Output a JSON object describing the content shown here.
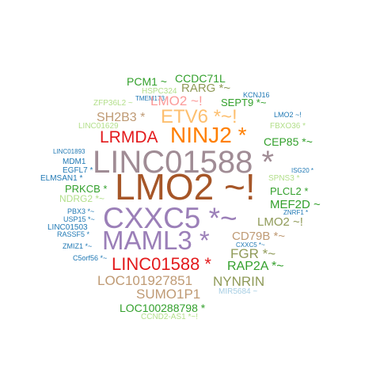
{
  "palette": {
    "dark_green": "#33a02c",
    "light_green": "#b2df8a",
    "blue": "#1f78b4",
    "light_blue": "#a6cee3",
    "red": "#e31a1c",
    "pink": "#fb9a99",
    "orange": "#ff7f00",
    "light_orange": "#fdbf6f",
    "purple": "#6a3d9a",
    "lavender": "#9b7fb8",
    "olive": "#8f9a58",
    "brown": "#a65628",
    "tan": "#bf9a74",
    "mauve": "#a08c95",
    "chartreuse": "#b5c86a"
  },
  "words": [
    {
      "text": "CCDC71L",
      "color": "#33a02c"
    },
    {
      "text": "PCM1 ~",
      "color": "#33a02c"
    },
    {
      "text": "RARG *~",
      "color": "#8f9a58"
    },
    {
      "text": "HSPC324",
      "color": "#b2df8a"
    },
    {
      "text": "TMEM173",
      "color": "#1f78b4"
    },
    {
      "text": "KCNJ16",
      "color": "#1f78b4"
    },
    {
      "text": "ZFP36L2 ~",
      "color": "#b2df8a"
    },
    {
      "text": "LMO2 ~!",
      "color": "#fb9a99"
    },
    {
      "text": "SEPT9 *~",
      "color": "#33a02c"
    },
    {
      "text": "LMO2 ~!",
      "color": "#1f78b4"
    },
    {
      "text": "SH2B3 *",
      "color": "#bf9a74"
    },
    {
      "text": "ETV6 *~!",
      "color": "#fdbf6f"
    },
    {
      "text": "LINC01629",
      "color": "#b2df8a"
    },
    {
      "text": "FBXO36 *",
      "color": "#b2df8a"
    },
    {
      "text": "LRMDA",
      "color": "#e31a1c"
    },
    {
      "text": "NINJ2 *",
      "color": "#ff7f00"
    },
    {
      "text": "CEP85 *~",
      "color": "#33a02c"
    },
    {
      "text": "LINC01893",
      "color": "#1f78b4"
    },
    {
      "text": "LINC01588 *",
      "color": "#a08c95"
    },
    {
      "text": "MDM1",
      "color": "#1f78b4"
    },
    {
      "text": "EGFL7 *",
      "color": "#1f78b4"
    },
    {
      "text": "ISG20 *",
      "color": "#1f78b4"
    },
    {
      "text": "ELMSAN1 *",
      "color": "#1f78b4"
    },
    {
      "text": "SPNS3 *",
      "color": "#b2df8a"
    },
    {
      "text": "PRKCB *",
      "color": "#33a02c"
    },
    {
      "text": "LMO2 ~!",
      "color": "#a65628"
    },
    {
      "text": "PLCL2 *",
      "color": "#33a02c"
    },
    {
      "text": "NDRG2 *~",
      "color": "#b2df8a"
    },
    {
      "text": "MEF2D ~",
      "color": "#33a02c"
    },
    {
      "text": "PBX3 *~",
      "color": "#1f78b4"
    },
    {
      "text": "ZNRF1 *",
      "color": "#1f78b4"
    },
    {
      "text": "USP15 *~",
      "color": "#1f78b4"
    },
    {
      "text": "CXXC5 *~",
      "color": "#9b7fb8"
    },
    {
      "text": "LMO2 ~!",
      "color": "#8f9a58"
    },
    {
      "text": "LINC01503",
      "color": "#1f78b4"
    },
    {
      "text": "RASSF5 *",
      "color": "#1f78b4"
    },
    {
      "text": "MAML3 *",
      "color": "#9b7fb8"
    },
    {
      "text": "CD79B *~",
      "color": "#bf9a74"
    },
    {
      "text": "ZMIZ1 *~",
      "color": "#1f78b4"
    },
    {
      "text": "CXXC5 *~",
      "color": "#1f78b4"
    },
    {
      "text": "FGR *~",
      "color": "#8f9a58"
    },
    {
      "text": "C5orf56 *~",
      "color": "#1f78b4"
    },
    {
      "text": "LINC01588 *",
      "color": "#e31a1c"
    },
    {
      "text": "RAP2A *~",
      "color": "#33a02c"
    },
    {
      "text": "LOC101927851",
      "color": "#bf9a74"
    },
    {
      "text": "NYNRIN",
      "color": "#8f9a58"
    },
    {
      "text": "SUMO1P1",
      "color": "#bf9a74"
    },
    {
      "text": "MIR5684 ~",
      "color": "#a6cee3"
    },
    {
      "text": "LOC100288798 *",
      "color": "#33a02c"
    },
    {
      "text": "CCND2-AS1 *~!",
      "color": "#b2df8a"
    }
  ]
}
